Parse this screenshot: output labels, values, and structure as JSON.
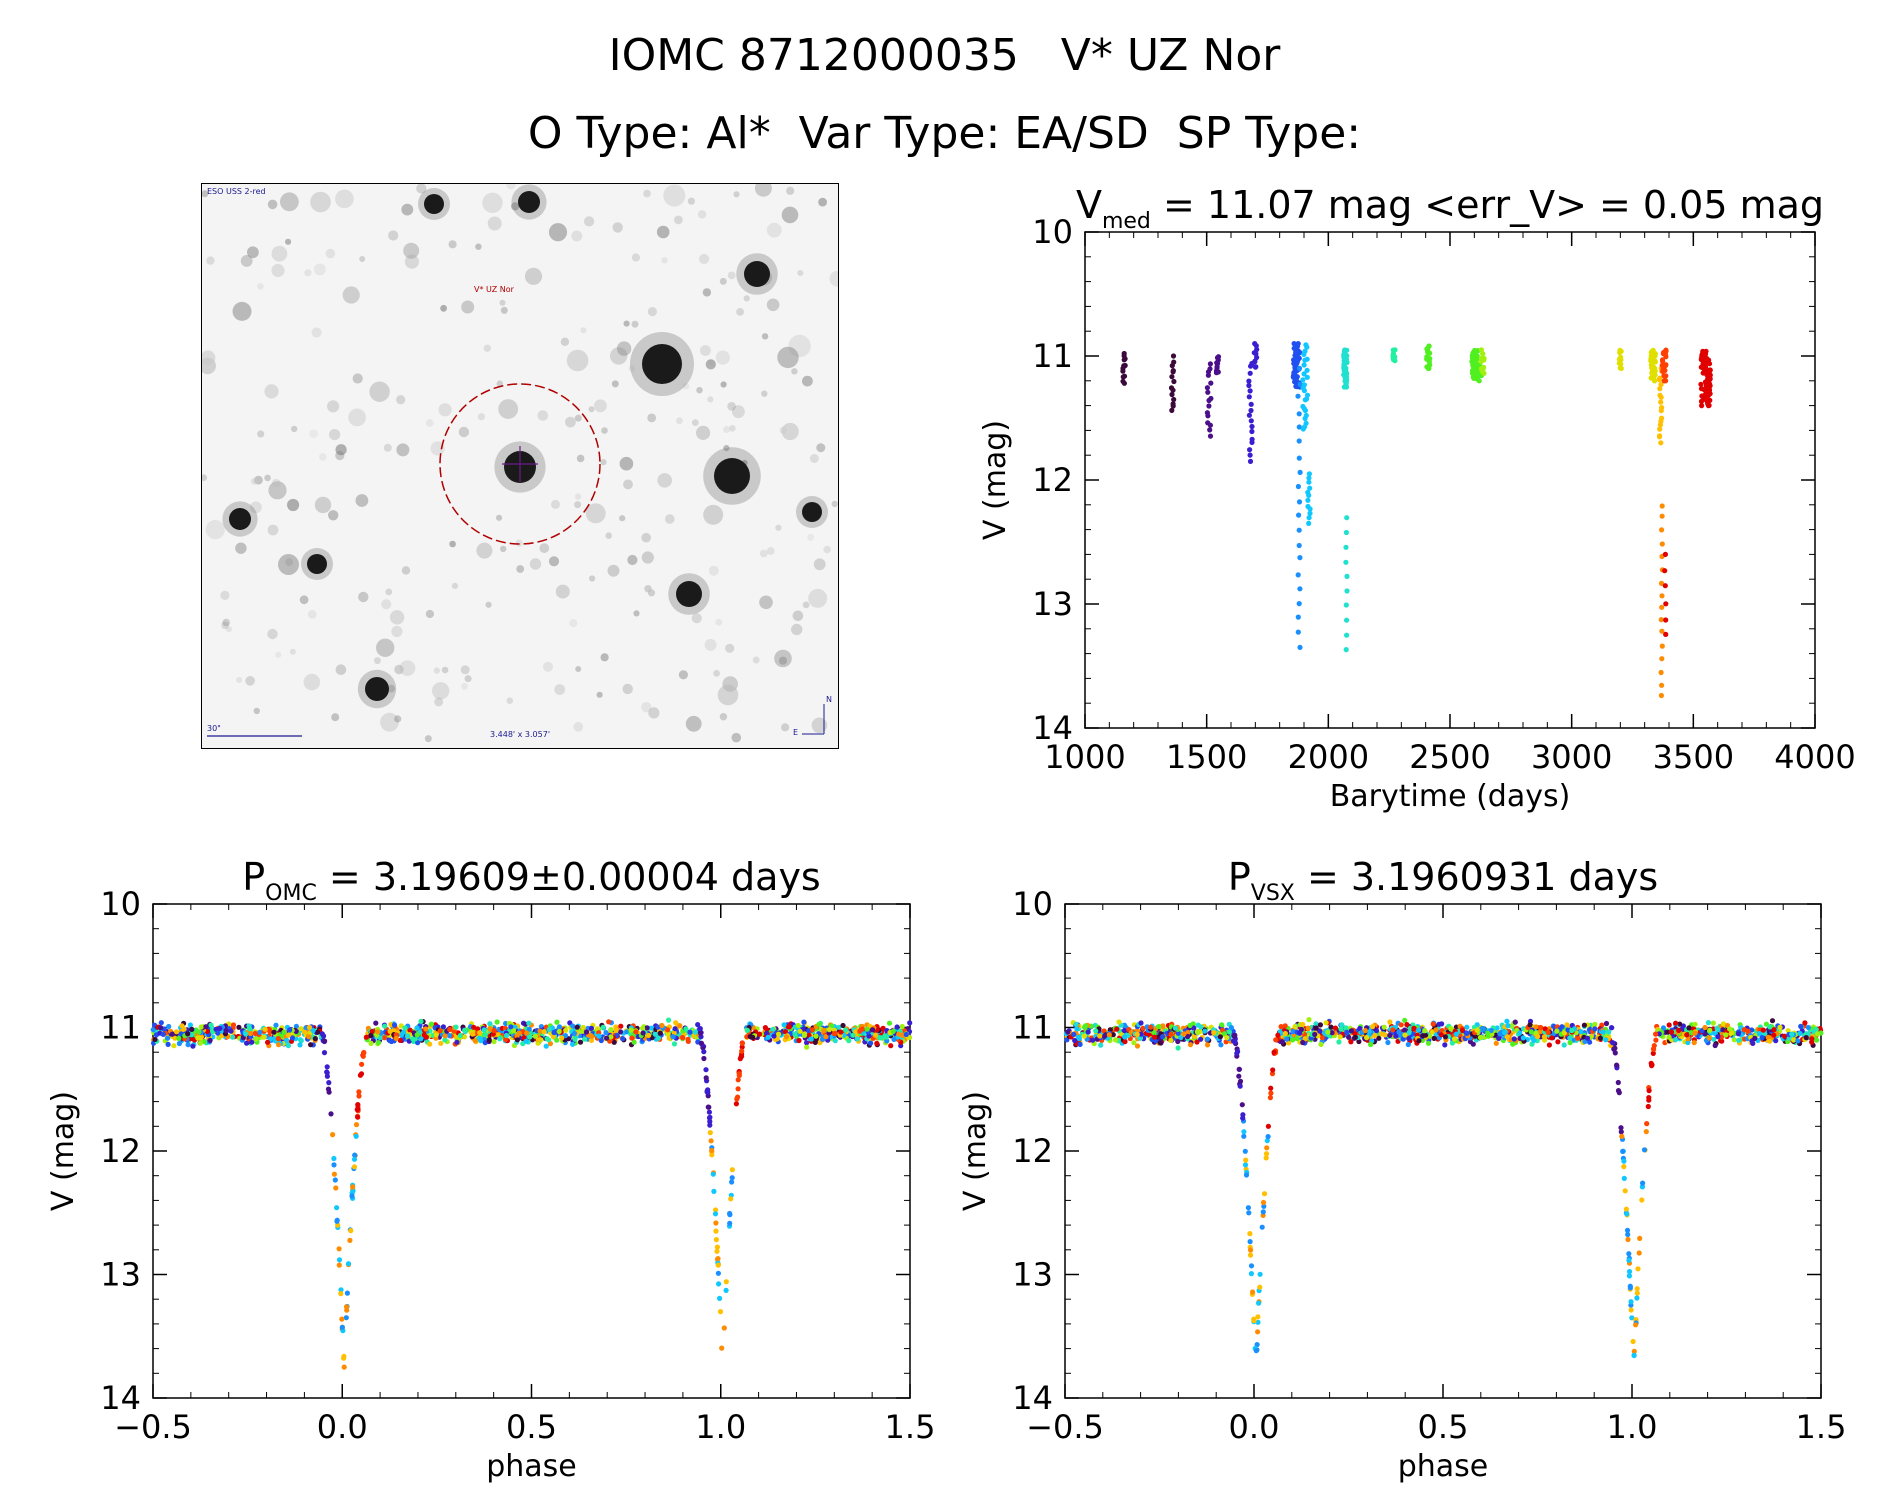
{
  "header": {
    "line1": "IOMC 8712000035   V* UZ Nor",
    "line2": "O Type: Al*  Var Type: EA/SD  SP Type:"
  },
  "finder_chart": {
    "label_top_left": "ESO USS 2-red",
    "target_label": "V* UZ Nor",
    "scale_label": "30\"",
    "fov_label": "3.448' x 3.057'",
    "compass_n": "N",
    "compass_e": "E"
  },
  "palette": [
    "#3b0a3a",
    "#4b0f8a",
    "#3a1fd0",
    "#2050f0",
    "#1a90ff",
    "#10c8ff",
    "#20e0d0",
    "#20f0a0",
    "#50f020",
    "#a0f010",
    "#e0e000",
    "#ffc000",
    "#ff8c00",
    "#ff4000",
    "#e00000"
  ],
  "chart_data": [
    {
      "id": "lightcurve",
      "type": "scatter",
      "title_main": "V",
      "title_sub": "med",
      "title_rest": " = 11.07 mag <err_V> = 0.05 mag",
      "xlabel": "Barytime (days)",
      "ylabel": "V (mag)",
      "xlim": [
        1000,
        4000
      ],
      "ylim": [
        14,
        10
      ],
      "x_ticks": [
        1000,
        1500,
        2000,
        2500,
        3000,
        3500,
        4000
      ],
      "y_ticks": [
        10,
        11,
        12,
        13,
        14
      ],
      "clusters": [
        {
          "x": 1160,
          "w": 12,
          "color_idx": 0,
          "n": 12,
          "min": 10.98,
          "max": 11.22
        },
        {
          "x": 1360,
          "w": 14,
          "color_idx": 0,
          "n": 14,
          "min": 11.0,
          "max": 11.45
        },
        {
          "x": 1510,
          "w": 16,
          "color_idx": 1,
          "n": 16,
          "min": 11.05,
          "max": 11.65
        },
        {
          "x": 1545,
          "w": 12,
          "color_idx": 1,
          "n": 10,
          "min": 11.0,
          "max": 11.15
        },
        {
          "x": 1680,
          "w": 14,
          "color_idx": 2,
          "n": 18,
          "min": 11.05,
          "max": 11.85
        },
        {
          "x": 1700,
          "w": 12,
          "color_idx": 2,
          "n": 10,
          "min": 10.9,
          "max": 11.1
        },
        {
          "x": 1870,
          "w": 28,
          "color_idx": 3,
          "n": 40,
          "min": 10.9,
          "max": 11.25
        },
        {
          "x": 1880,
          "w": 10,
          "color_idx": 4,
          "n": 20,
          "min": 11.1,
          "max": 13.35
        },
        {
          "x": 1905,
          "w": 20,
          "color_idx": 5,
          "n": 25,
          "min": 10.9,
          "max": 11.6
        },
        {
          "x": 1920,
          "w": 10,
          "color_idx": 5,
          "n": 12,
          "min": 11.95,
          "max": 12.35
        },
        {
          "x": 2070,
          "w": 14,
          "color_idx": 6,
          "n": 35,
          "min": 10.95,
          "max": 11.25
        },
        {
          "x": 2075,
          "w": 6,
          "color_idx": 6,
          "n": 10,
          "min": 12.3,
          "max": 13.38
        },
        {
          "x": 2270,
          "w": 10,
          "color_idx": 7,
          "n": 8,
          "min": 10.95,
          "max": 11.05
        },
        {
          "x": 2410,
          "w": 14,
          "color_idx": 8,
          "n": 20,
          "min": 10.92,
          "max": 11.1
        },
        {
          "x": 2610,
          "w": 40,
          "color_idx": 8,
          "n": 40,
          "min": 10.95,
          "max": 11.2
        },
        {
          "x": 2635,
          "w": 14,
          "color_idx": 9,
          "n": 12,
          "min": 10.95,
          "max": 11.15
        },
        {
          "x": 3200,
          "w": 10,
          "color_idx": 10,
          "n": 10,
          "min": 10.95,
          "max": 11.1
        },
        {
          "x": 3335,
          "w": 20,
          "color_idx": 10,
          "n": 35,
          "min": 10.95,
          "max": 11.2
        },
        {
          "x": 3365,
          "w": 10,
          "color_idx": 11,
          "n": 18,
          "min": 11.1,
          "max": 11.7
        },
        {
          "x": 3370,
          "w": 6,
          "color_idx": 12,
          "n": 16,
          "min": 12.2,
          "max": 13.75
        },
        {
          "x": 3380,
          "w": 16,
          "color_idx": 13,
          "n": 20,
          "min": 10.95,
          "max": 11.2
        },
        {
          "x": 3385,
          "w": 6,
          "color_idx": 14,
          "n": 6,
          "min": 12.6,
          "max": 13.25
        },
        {
          "x": 3550,
          "w": 40,
          "color_idx": 14,
          "n": 70,
          "min": 10.95,
          "max": 11.4
        }
      ]
    },
    {
      "id": "phase_omc",
      "type": "scatter",
      "title_main": "P",
      "title_sub": "OMC",
      "title_rest": " = 3.19609±0.00004 days",
      "xlabel": "phase",
      "ylabel": "V (mag)",
      "xlim": [
        -0.5,
        1.5
      ],
      "ylim": [
        14,
        10
      ],
      "x_ticks": [
        -0.5,
        0.0,
        0.5,
        1.0,
        1.5
      ],
      "x_tick_labels": [
        "−0.5",
        "0.0",
        "0.5",
        "1.0",
        "1.5"
      ],
      "y_ticks": [
        10,
        11,
        12,
        13,
        14
      ],
      "baseline_mag": 11.05,
      "baseline_scatter": 0.08,
      "eclipse_centers": [
        0.0,
        1.0
      ],
      "eclipse_half_width": 0.06,
      "eclipse_depth_mag": 13.75
    },
    {
      "id": "phase_vsx",
      "type": "scatter",
      "title_main": "P",
      "title_sub": "VSX",
      "title_rest": " = 3.1960931 days",
      "xlabel": "phase",
      "ylabel": "V (mag)",
      "xlim": [
        -0.5,
        1.5
      ],
      "ylim": [
        14,
        10
      ],
      "x_ticks": [
        -0.5,
        0.0,
        0.5,
        1.0,
        1.5
      ],
      "x_tick_labels": [
        "−0.5",
        "0.0",
        "0.5",
        "1.0",
        "1.5"
      ],
      "y_ticks": [
        10,
        11,
        12,
        13,
        14
      ],
      "baseline_mag": 11.05,
      "baseline_scatter": 0.08,
      "eclipse_centers": [
        0.0,
        1.0
      ],
      "eclipse_half_width": 0.06,
      "eclipse_depth_mag": 13.75
    }
  ]
}
